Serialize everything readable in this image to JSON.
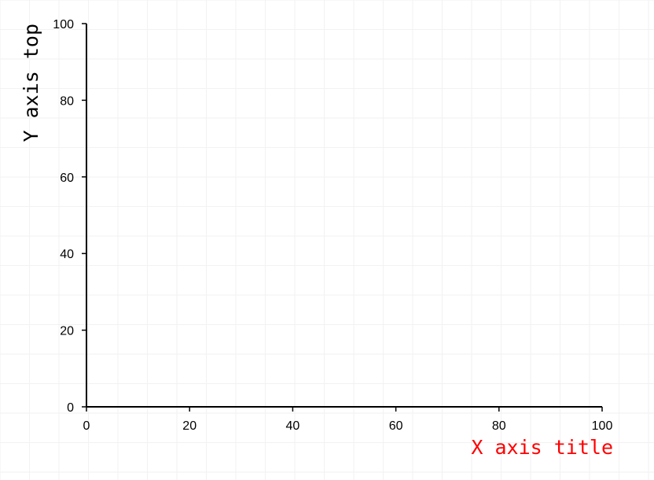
{
  "chart_data": {
    "type": "scatter",
    "title": "",
    "xlabel": "X axis title",
    "ylabel": "Y axis top",
    "xlim": [
      0,
      100
    ],
    "ylim": [
      0,
      100
    ],
    "x_ticks": [
      0,
      20,
      40,
      60,
      80,
      100
    ],
    "y_ticks": [
      0,
      20,
      40,
      60,
      80,
      100
    ],
    "x_tick_labels": [
      "0",
      "20",
      "40",
      "60",
      "80",
      "100"
    ],
    "y_tick_labels": [
      "0",
      "20",
      "40",
      "60",
      "80",
      "100"
    ],
    "series": [],
    "grid": true,
    "colors": {
      "xlabel": "#ff0000",
      "ylabel": "#000000",
      "axis": "#000000",
      "grid": "#f2f2f2"
    }
  }
}
